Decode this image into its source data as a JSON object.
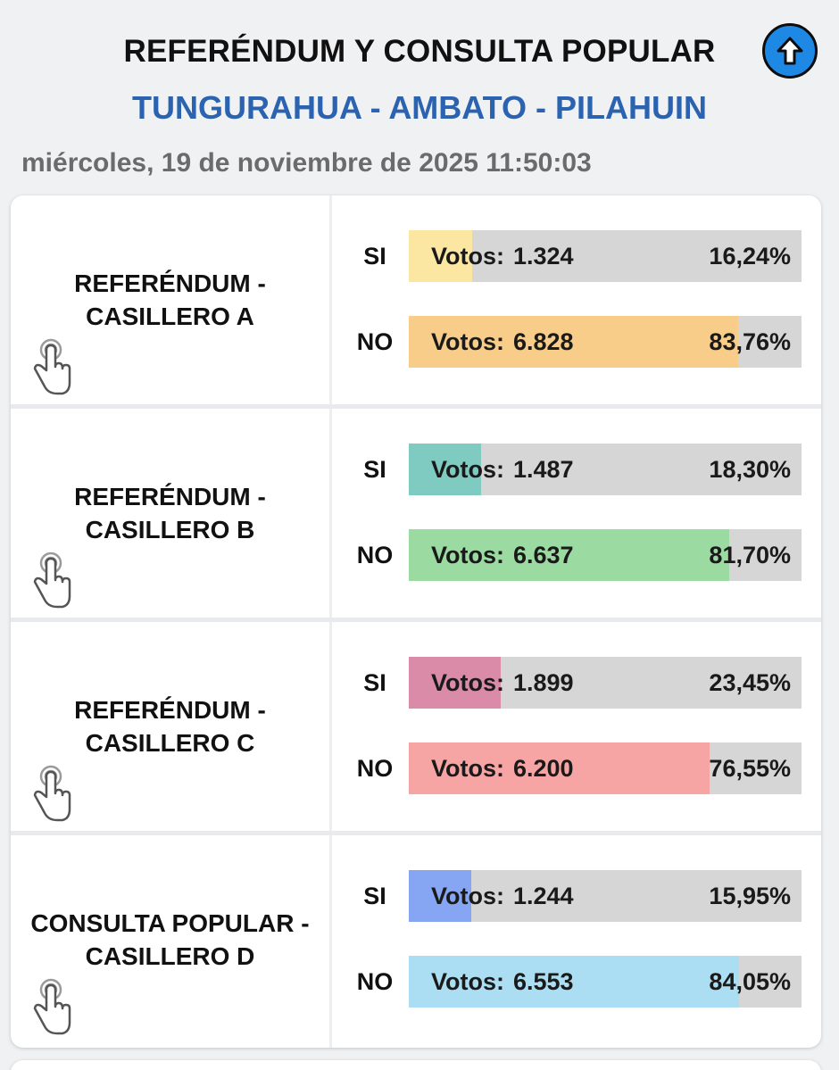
{
  "header": {
    "title": "REFERÉNDUM Y CONSULTA POPULAR",
    "location": "TUNGURAHUA - AMBATO - PILAHUIN",
    "datetime": "miércoles, 19 de noviembre de 2025 11:50:03",
    "scroll_top_icon": "arrow-up-circle-icon"
  },
  "results": [
    {
      "label_line1": "REFERÉNDUM -",
      "label_line2": "CASILLERO A",
      "icon": "hand-pointer-icon",
      "options": [
        {
          "label": "SI",
          "votes_label": "Votos:",
          "votes": "1.324",
          "percent": "16,24%",
          "fill": 16.24,
          "color": "#fbe7a2"
        },
        {
          "label": "NO",
          "votes_label": "Votos:",
          "votes": "6.828",
          "percent": "83,76%",
          "fill": 83.76,
          "color": "#f8cd8a"
        }
      ]
    },
    {
      "label_line1": "REFERÉNDUM -",
      "label_line2": "CASILLERO B",
      "icon": "hand-pointer-icon",
      "options": [
        {
          "label": "SI",
          "votes_label": "Votos:",
          "votes": "1.487",
          "percent": "18,30%",
          "fill": 18.3,
          "color": "#7fcbc1"
        },
        {
          "label": "NO",
          "votes_label": "Votos:",
          "votes": "6.637",
          "percent": "81,70%",
          "fill": 81.7,
          "color": "#9bdba2"
        }
      ]
    },
    {
      "label_line1": "REFERÉNDUM -",
      "label_line2": "CASILLERO C",
      "icon": "hand-pointer-icon",
      "options": [
        {
          "label": "SI",
          "votes_label": "Votos:",
          "votes": "1.899",
          "percent": "23,45%",
          "fill": 23.45,
          "color": "#d98ba7"
        },
        {
          "label": "NO",
          "votes_label": "Votos:",
          "votes": "6.200",
          "percent": "76,55%",
          "fill": 76.55,
          "color": "#f7a4a4"
        }
      ]
    },
    {
      "label_line1": "CONSULTA POPULAR -",
      "label_line2": "CASILLERO D",
      "icon": "hand-pointer-icon",
      "options": [
        {
          "label": "SI",
          "votes_label": "Votos:",
          "votes": "1.244",
          "percent": "15,95%",
          "fill": 15.95,
          "color": "#86a6f3"
        },
        {
          "label": "NO",
          "votes_label": "Votos:",
          "votes": "6.553",
          "percent": "84,05%",
          "fill": 84.05,
          "color": "#abdef2"
        }
      ]
    }
  ]
}
